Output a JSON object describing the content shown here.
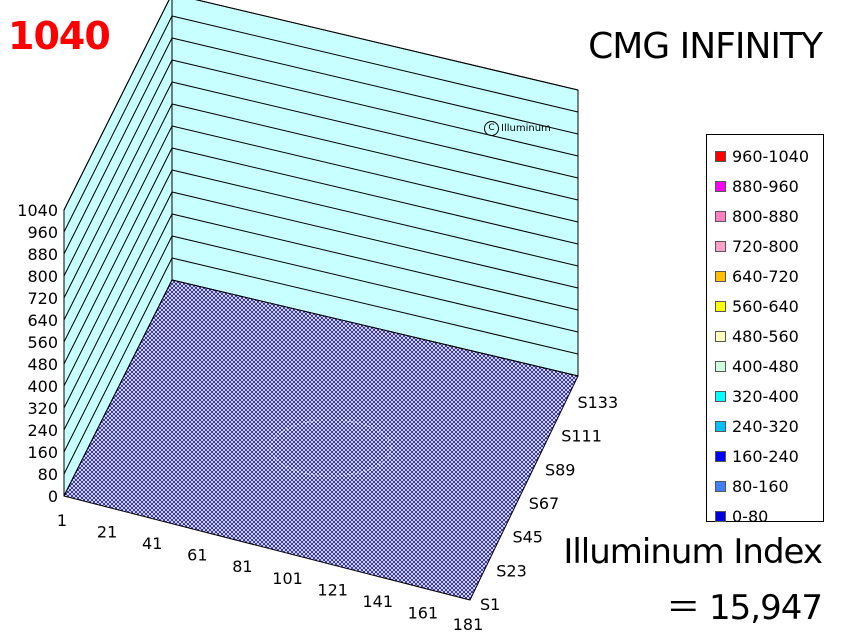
{
  "header": {
    "max_value": "1040",
    "title": "CMG INFINITY"
  },
  "watermark": {
    "symbol": "C",
    "text": "Illuminum"
  },
  "index": {
    "label": "Illuminum Index",
    "value": "＝ 15,947"
  },
  "legend": {
    "items": [
      {
        "label": "960-1040",
        "color": "#ff0000"
      },
      {
        "label": "880-960",
        "color": "#ff00ff"
      },
      {
        "label": "800-880",
        "color": "#ff80c0"
      },
      {
        "label": "720-800",
        "color": "#ffa0c8"
      },
      {
        "label": "640-720",
        "color": "#ffc000"
      },
      {
        "label": "560-640",
        "color": "#ffff00"
      },
      {
        "label": "480-560",
        "color": "#ffffc0"
      },
      {
        "label": "400-480",
        "color": "#d0ffe0"
      },
      {
        "label": "320-400",
        "color": "#00ffff"
      },
      {
        "label": "240-320",
        "color": "#00c0ff"
      },
      {
        "label": "160-240",
        "color": "#0000ff"
      },
      {
        "label": "80-160",
        "color": "#4080ff"
      },
      {
        "label": "0-80",
        "color": "#0000e0"
      }
    ]
  },
  "chart_data": {
    "type": "surface",
    "z_ticks": [
      "0",
      "80",
      "160",
      "240",
      "320",
      "400",
      "480",
      "560",
      "640",
      "720",
      "800",
      "880",
      "960",
      "1040"
    ],
    "z_range": [
      0,
      1040
    ],
    "x_ticks": [
      "1",
      "21",
      "41",
      "61",
      "81",
      "101",
      "121",
      "141",
      "161",
      "181"
    ],
    "y_ticks": [
      "S1",
      "S23",
      "S45",
      "S67",
      "S89",
      "S111",
      "S133"
    ],
    "z_max": 1040,
    "surface_level_range": "0-80",
    "wall_color": "#c8ffff",
    "mesh_color": "#0000c0"
  }
}
